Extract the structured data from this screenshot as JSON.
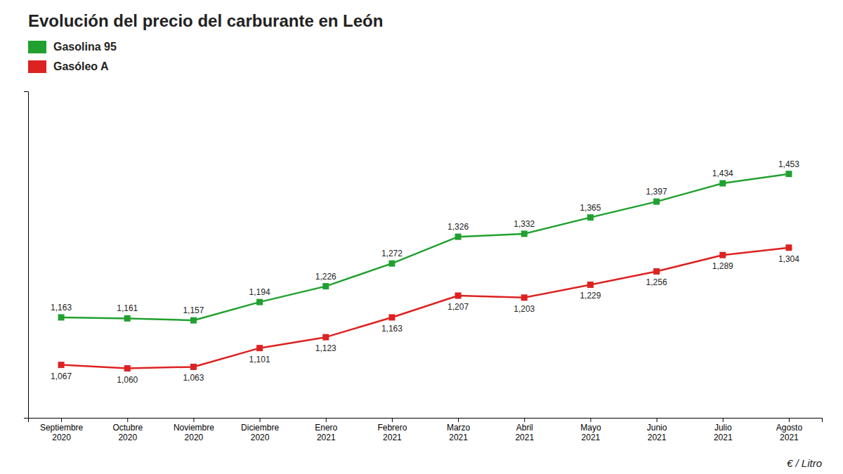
{
  "chart_data": {
    "type": "line",
    "title": "Evolución del precio del carburante en León",
    "ylabel": "€ / Litro",
    "categories": [
      "Septiembre\n2020",
      "Octubre\n2020",
      "Noviembre\n2020",
      "Diciembre\n2020",
      "Enero\n2021",
      "Febrero\n2021",
      "Marzo\n2021",
      "Abril\n2021",
      "Mayo\n2021",
      "Junio\n2021",
      "Julio\n2021",
      "Agosto\n2021"
    ],
    "series": [
      {
        "name": "Gasolina 95",
        "color": "#21a030",
        "marker": "square",
        "values": [
          1.163,
          1.161,
          1.157,
          1.194,
          1.226,
          1.272,
          1.326,
          1.332,
          1.365,
          1.397,
          1.434,
          1.453
        ],
        "value_labels": [
          "1,163",
          "1,161",
          "1,157",
          "1,194",
          "1,226",
          "1,272",
          "1,326",
          "1,332",
          "1,365",
          "1,397",
          "1,434",
          "1,453"
        ]
      },
      {
        "name": "Gasóleo A",
        "color": "#dd2222",
        "marker": "square",
        "values": [
          1.067,
          1.06,
          1.063,
          1.101,
          1.123,
          1.163,
          1.207,
          1.203,
          1.229,
          1.256,
          1.289,
          1.304
        ],
        "value_labels": [
          "1,067",
          "1,060",
          "1,063",
          "1,101",
          "1,123",
          "1,163",
          "1,207",
          "1,203",
          "1,229",
          "1,256",
          "1,289",
          "1,304"
        ]
      }
    ],
    "ylim": [
      0.96,
      1.62
    ],
    "yticks": [],
    "tick_labels": "x",
    "data_labels": true,
    "legend": "upper left",
    "grid": false
  }
}
